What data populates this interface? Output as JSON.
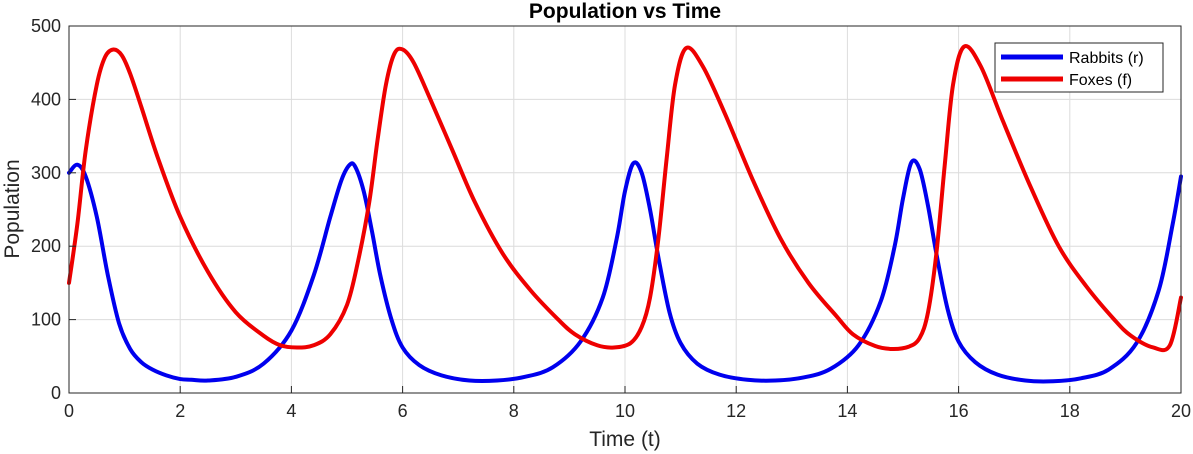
{
  "chart_data": {
    "type": "line",
    "title": "Population vs Time",
    "xlabel": "Time (t)",
    "ylabel": "Population",
    "xlim": [
      0,
      20
    ],
    "ylim": [
      0,
      500
    ],
    "xticks": [
      0,
      2,
      4,
      6,
      8,
      10,
      12,
      14,
      16,
      18,
      20
    ],
    "yticks": [
      0,
      100,
      200,
      300,
      400,
      500
    ],
    "grid": true,
    "legend_position": "top-right",
    "series": [
      {
        "name": "Rabbits (r)",
        "color": "#0000ee",
        "x": [
          0,
          0.15,
          0.3,
          0.5,
          0.7,
          0.9,
          1.1,
          1.3,
          1.5,
          1.75,
          2.0,
          2.2,
          2.5,
          3.0,
          3.5,
          4.0,
          4.4,
          4.7,
          4.9,
          5.05,
          5.15,
          5.3,
          5.45,
          5.6,
          5.8,
          6.0,
          6.3,
          6.7,
          7.2,
          7.7,
          8.2,
          8.7,
          9.2,
          9.6,
          9.85,
          10.0,
          10.15,
          10.3,
          10.45,
          10.6,
          10.8,
          11.0,
          11.3,
          11.7,
          12.2,
          12.7,
          13.2,
          13.7,
          14.2,
          14.6,
          14.85,
          15.0,
          15.15,
          15.3,
          15.45,
          15.6,
          15.8,
          16.0,
          16.3,
          16.7,
          17.2,
          17.7,
          18.2,
          18.7,
          19.2,
          19.6,
          19.85,
          20.0
        ],
        "y": [
          300,
          311,
          295,
          240,
          160,
          95,
          60,
          42,
          32,
          24,
          19,
          18,
          17,
          22,
          40,
          85,
          160,
          240,
          290,
          311,
          308,
          275,
          220,
          160,
          100,
          62,
          38,
          24,
          17,
          17,
          22,
          35,
          70,
          130,
          210,
          275,
          313,
          300,
          250,
          185,
          110,
          68,
          40,
          25,
          18,
          17,
          21,
          33,
          65,
          125,
          200,
          265,
          314,
          305,
          255,
          190,
          115,
          70,
          42,
          25,
          17,
          16,
          20,
          32,
          68,
          140,
          230,
          295
        ]
      },
      {
        "name": "Foxes (f)",
        "color": "#ee0000",
        "x": [
          0,
          0.15,
          0.3,
          0.5,
          0.65,
          0.8,
          0.95,
          1.1,
          1.3,
          1.6,
          2.0,
          2.5,
          3.0,
          3.5,
          3.8,
          4.1,
          4.4,
          4.7,
          5.0,
          5.2,
          5.4,
          5.55,
          5.7,
          5.85,
          6.0,
          6.2,
          6.5,
          6.9,
          7.3,
          7.8,
          8.3,
          8.8,
          9.1,
          9.5,
          9.8,
          10.1,
          10.3,
          10.45,
          10.6,
          10.75,
          10.9,
          11.1,
          11.4,
          11.8,
          12.3,
          12.8,
          13.3,
          13.8,
          14.1,
          14.5,
          14.8,
          15.1,
          15.3,
          15.45,
          15.6,
          15.75,
          15.9,
          16.1,
          16.4,
          16.8,
          17.3,
          17.8,
          18.3,
          18.8,
          19.1,
          19.5,
          19.8,
          20.0
        ],
        "y": [
          150,
          230,
          330,
          420,
          458,
          468,
          460,
          435,
          390,
          320,
          240,
          165,
          110,
          78,
          65,
          62,
          65,
          80,
          120,
          180,
          260,
          345,
          420,
          462,
          468,
          450,
          400,
          330,
          260,
          190,
          140,
          100,
          80,
          65,
          62,
          68,
          90,
          130,
          210,
          320,
          420,
          470,
          445,
          380,
          290,
          210,
          150,
          105,
          80,
          64,
          60,
          63,
          75,
          110,
          190,
          310,
          420,
          472,
          445,
          370,
          280,
          200,
          145,
          100,
          78,
          62,
          65,
          130
        ]
      }
    ]
  }
}
